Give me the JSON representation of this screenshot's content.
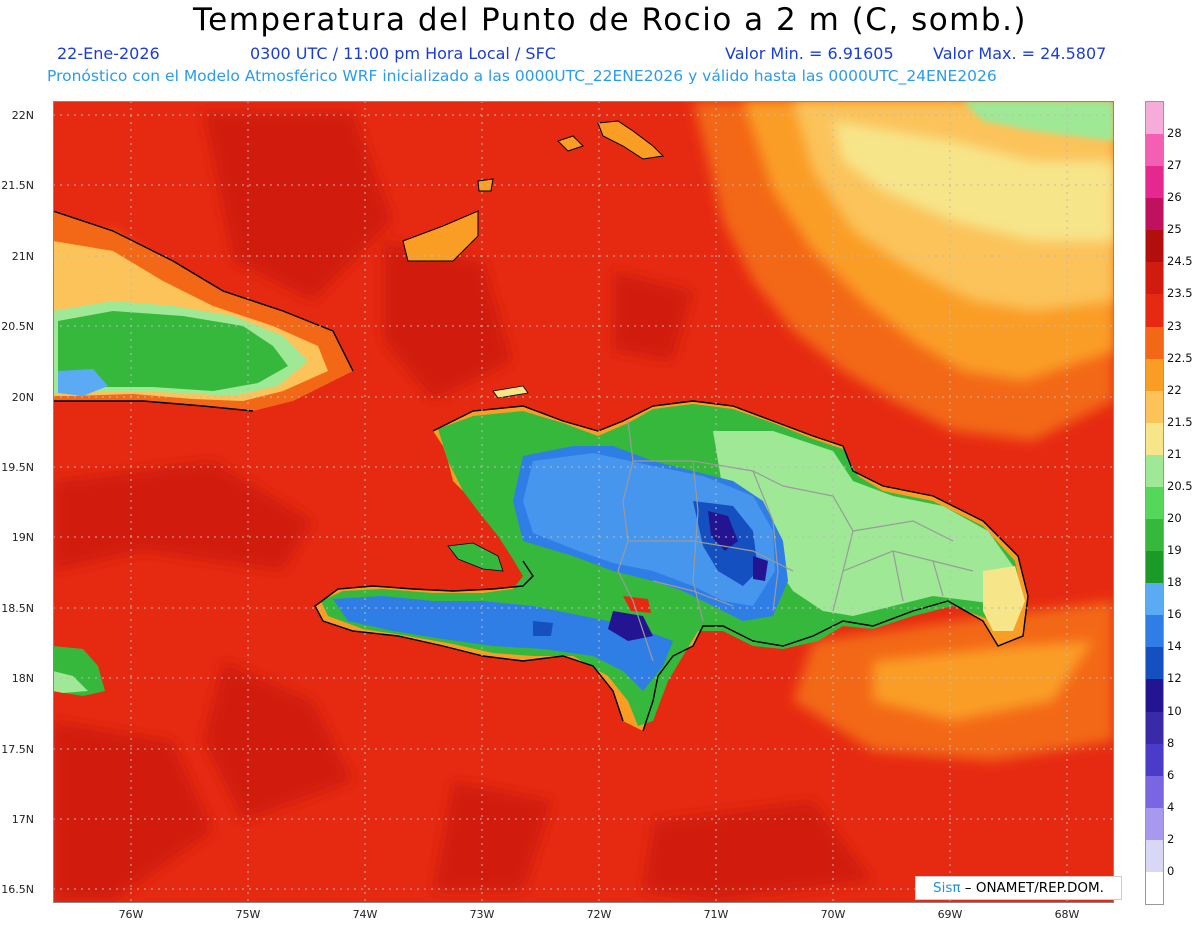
{
  "title": "Temperatura del Punto de Rocio a 2 m (C, somb.)",
  "subtitle": {
    "date": "22-Ene-2026",
    "time": "0300 UTC / 11:00 pm Hora Local / SFC",
    "vmin": "Valor Min. = 6.91605",
    "vmax": "Valor Max. = 24.5807"
  },
  "model_line": "Pronóstico con el Modelo Atmosférico WRF inicializado a las 0000UTC_22ENE2026 y válido hasta las  0000UTC_24ENE2026",
  "credit": {
    "logo": "Sisπ",
    "text": " – ONAMET/REP.DOM."
  },
  "lat_labels": [
    "22N",
    "21.5N",
    "21N",
    "20.5N",
    "20N",
    "19.5N",
    "19N",
    "18.5N",
    "18N",
    "17.5N",
    "17N",
    "16.5N"
  ],
  "lon_labels": [
    "76W",
    "75W",
    "74W",
    "73W",
    "72W",
    "71W",
    "70W",
    "69W",
    "68W"
  ],
  "colorbar": {
    "levels": [
      "0",
      "2",
      "4",
      "6",
      "8",
      "10",
      "12",
      "14",
      "16",
      "18",
      "19",
      "20",
      "20.5",
      "21",
      "21.5",
      "22",
      "22.5",
      "23",
      "23.5",
      "24.5",
      "25",
      "26",
      "27",
      "28"
    ],
    "colors": [
      "#ffffff",
      "#d8d8f4",
      "#a898ee",
      "#7b66e2",
      "#4a3cc8",
      "#3a2aa8",
      "#231591",
      "#1450c0",
      "#2f7ee6",
      "#5aaaf4",
      "#1b9a28",
      "#35b83c",
      "#55d85a",
      "#9ee896",
      "#f7e58a",
      "#fbc35a",
      "#fa9d25",
      "#f36817",
      "#e62a12",
      "#d11b0e",
      "#b30e0e",
      "#c0115e",
      "#e4288f",
      "#f45fb4",
      "#f6acd8"
    ]
  }
}
